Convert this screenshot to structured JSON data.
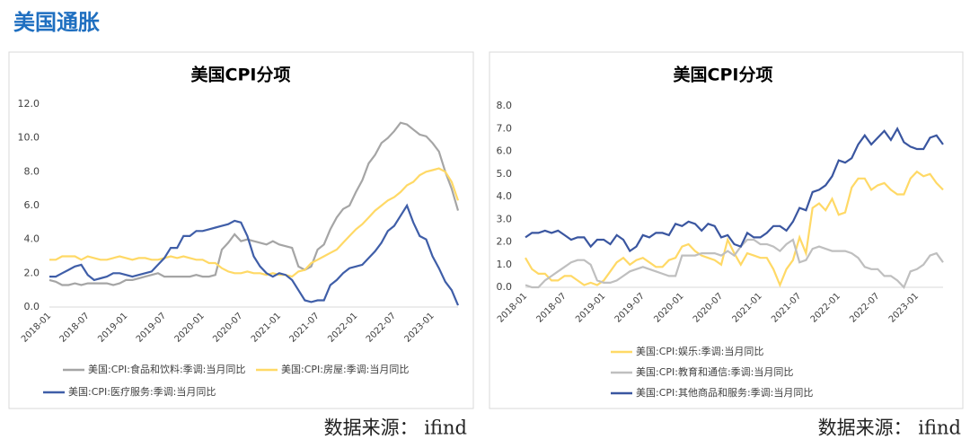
{
  "header": {
    "title": "美国通胀"
  },
  "chart_data": [
    {
      "type": "line",
      "title": "美国CPI分项",
      "categories": [
        "2018-01",
        null,
        null,
        null,
        null,
        null,
        "2018-07",
        null,
        null,
        null,
        null,
        null,
        "2019-01",
        null,
        null,
        null,
        null,
        null,
        "2019-07",
        null,
        null,
        null,
        null,
        null,
        "2020-01",
        null,
        null,
        null,
        null,
        null,
        "2020-07",
        null,
        null,
        null,
        null,
        null,
        "2021-01",
        null,
        null,
        null,
        null,
        null,
        "2021-07",
        null,
        null,
        null,
        null,
        null,
        "2022-01",
        null,
        null,
        null,
        null,
        null,
        "2022-07",
        null,
        null,
        null,
        null,
        null,
        "2023-01",
        null,
        null,
        null,
        null
      ],
      "ylim": [
        0,
        12
      ],
      "yticks": [
        {
          "value": 0,
          "label": "0.0"
        },
        {
          "value": 2,
          "label": "2.0"
        },
        {
          "value": 4,
          "label": "4.0"
        },
        {
          "value": 6,
          "label": "6.0"
        },
        {
          "value": 8,
          "label": "8.0"
        },
        {
          "value": 10,
          "label": "10.0"
        },
        {
          "value": 12,
          "label": "12.0"
        }
      ],
      "series": [
        {
          "name": "美国:CPI:食品和饮料:季调:当月同比",
          "color": "#a5a5a5",
          "values": [
            1.6,
            1.5,
            1.3,
            1.3,
            1.4,
            1.3,
            1.4,
            1.4,
            1.4,
            1.4,
            1.3,
            1.4,
            1.6,
            1.6,
            1.7,
            1.8,
            1.9,
            2.0,
            1.8,
            1.8,
            1.8,
            1.8,
            1.8,
            1.9,
            1.8,
            1.8,
            1.9,
            3.4,
            3.8,
            4.3,
            3.9,
            4.0,
            3.9,
            3.8,
            3.7,
            3.9,
            3.7,
            3.6,
            3.5,
            2.4,
            2.2,
            2.4,
            3.4,
            3.7,
            4.6,
            5.3,
            5.8,
            6.0,
            6.8,
            7.5,
            8.5,
            9.0,
            9.7,
            10.0,
            10.4,
            10.9,
            10.8,
            10.5,
            10.2,
            10.1,
            9.7,
            9.2,
            8.0,
            7.0,
            5.7
          ]
        },
        {
          "name": "美国:CPI:房屋:季调:当月同比",
          "color": "#ffd966",
          "values": [
            2.8,
            2.8,
            3.0,
            3.0,
            3.0,
            2.8,
            3.0,
            2.9,
            2.8,
            2.8,
            2.9,
            3.0,
            2.9,
            2.8,
            2.9,
            2.9,
            2.8,
            2.8,
            2.9,
            3.0,
            2.9,
            3.0,
            2.9,
            2.8,
            2.8,
            2.6,
            2.6,
            2.3,
            2.1,
            2.0,
            2.0,
            2.1,
            2.0,
            2.0,
            1.9,
            2.0,
            1.9,
            1.9,
            1.8,
            2.1,
            2.2,
            2.6,
            2.8,
            3.0,
            3.2,
            3.4,
            3.8,
            4.2,
            4.6,
            4.9,
            5.3,
            5.7,
            6.0,
            6.3,
            6.5,
            6.8,
            7.2,
            7.4,
            7.8,
            8.0,
            8.1,
            8.2,
            8.0,
            7.4,
            6.3
          ]
        },
        {
          "name": "美国:CPI:医疗服务:季调:当月同比",
          "color": "#3f5ea8",
          "values": [
            1.8,
            1.8,
            2.0,
            2.2,
            2.4,
            2.5,
            1.9,
            1.6,
            1.7,
            1.8,
            2.0,
            2.0,
            1.9,
            1.8,
            1.9,
            2.0,
            2.1,
            2.5,
            2.9,
            3.5,
            3.5,
            4.2,
            4.2,
            4.5,
            4.5,
            4.6,
            4.7,
            4.8,
            4.9,
            5.1,
            5.0,
            4.2,
            3.0,
            2.4,
            2.0,
            1.8,
            2.0,
            1.9,
            1.6,
            1.0,
            0.4,
            0.3,
            0.4,
            0.4,
            1.3,
            1.6,
            2.0,
            2.3,
            2.4,
            2.5,
            2.9,
            3.3,
            3.8,
            4.5,
            4.8,
            5.4,
            6.0,
            5.0,
            4.2,
            4.0,
            3.0,
            2.3,
            1.5,
            1.0,
            0.1
          ]
        }
      ],
      "source": "数据来源：  ifind"
    },
    {
      "type": "line",
      "title": "美国CPI分项",
      "categories": [
        "2018-01",
        null,
        null,
        null,
        null,
        null,
        "2018-07",
        null,
        null,
        null,
        null,
        null,
        "2019-01",
        null,
        null,
        null,
        null,
        null,
        "2019-07",
        null,
        null,
        null,
        null,
        null,
        "2020-01",
        null,
        null,
        null,
        null,
        null,
        "2020-07",
        null,
        null,
        null,
        null,
        null,
        "2021-01",
        null,
        null,
        null,
        null,
        null,
        "2021-07",
        null,
        null,
        null,
        null,
        null,
        "2022-01",
        null,
        null,
        null,
        null,
        null,
        "2022-07",
        null,
        null,
        null,
        null,
        null,
        "2023-01",
        null,
        null,
        null,
        null
      ],
      "ylim": [
        0,
        8
      ],
      "yticks": [
        {
          "value": 0,
          "label": "0.0"
        },
        {
          "value": 1,
          "label": "1.0"
        },
        {
          "value": 2,
          "label": "2.0"
        },
        {
          "value": 3,
          "label": "3.0"
        },
        {
          "value": 4,
          "label": "4.0"
        },
        {
          "value": 5,
          "label": "5.0"
        },
        {
          "value": 6,
          "label": "6.0"
        },
        {
          "value": 7,
          "label": "7.0"
        },
        {
          "value": 8,
          "label": "8.0"
        }
      ],
      "series": [
        {
          "name": "美国:CPI:娱乐:季调:当月同比",
          "color": "#ffd966",
          "values": [
            1.3,
            0.8,
            0.6,
            0.6,
            0.3,
            0.3,
            0.5,
            0.5,
            0.3,
            0.1,
            0.2,
            0.1,
            0.3,
            0.7,
            1.1,
            1.3,
            1.0,
            1.2,
            1.3,
            1.1,
            0.9,
            0.9,
            1.2,
            1.3,
            1.8,
            1.9,
            1.6,
            1.4,
            1.3,
            1.2,
            1.0,
            2.1,
            1.5,
            1.0,
            1.5,
            1.4,
            1.3,
            1.3,
            0.8,
            0.1,
            0.8,
            1.2,
            2.2,
            1.5,
            3.5,
            3.7,
            3.4,
            3.9,
            3.2,
            3.3,
            4.4,
            4.8,
            4.8,
            4.3,
            4.5,
            4.6,
            4.3,
            4.1,
            4.1,
            4.8,
            5.1,
            4.9,
            5.0,
            4.6,
            4.3
          ]
        },
        {
          "name": "美国:CPI:教育和通信:季调:当月同比",
          "color": "#bfbfbf",
          "values": [
            0.1,
            0.0,
            0.0,
            0.3,
            0.5,
            0.7,
            0.9,
            1.1,
            1.2,
            1.2,
            1.0,
            0.3,
            0.2,
            0.2,
            0.3,
            0.5,
            0.7,
            0.8,
            0.9,
            0.8,
            0.7,
            0.6,
            0.5,
            0.5,
            1.4,
            1.4,
            1.4,
            1.5,
            1.5,
            1.5,
            1.4,
            1.6,
            1.4,
            1.8,
            2.1,
            2.1,
            1.9,
            1.9,
            1.8,
            1.6,
            1.9,
            2.1,
            1.1,
            1.2,
            1.7,
            1.8,
            1.7,
            1.6,
            1.6,
            1.6,
            1.5,
            1.3,
            0.9,
            0.8,
            0.8,
            0.5,
            0.5,
            0.3,
            0.0,
            0.7,
            0.8,
            1.0,
            1.4,
            1.5,
            1.1
          ]
        },
        {
          "name": "美国:CPI:其他商品和服务:季调:当月同比",
          "color": "#3a56a0",
          "values": [
            2.2,
            2.4,
            2.4,
            2.5,
            2.4,
            2.5,
            2.3,
            2.1,
            2.2,
            2.2,
            1.8,
            2.1,
            2.1,
            1.9,
            2.3,
            2.1,
            1.6,
            1.8,
            2.3,
            2.2,
            2.4,
            2.4,
            2.3,
            2.8,
            2.7,
            2.9,
            2.8,
            2.5,
            2.8,
            2.7,
            2.2,
            2.3,
            1.9,
            1.8,
            2.4,
            2.2,
            2.2,
            2.4,
            2.7,
            2.7,
            2.5,
            2.9,
            3.5,
            3.4,
            4.2,
            4.3,
            4.5,
            4.9,
            5.6,
            5.5,
            5.7,
            6.3,
            6.7,
            6.3,
            6.6,
            6.9,
            6.5,
            7.0,
            6.4,
            6.2,
            6.1,
            6.1,
            6.6,
            6.7,
            6.3
          ]
        }
      ],
      "source": "数据来源：  ifind"
    }
  ]
}
